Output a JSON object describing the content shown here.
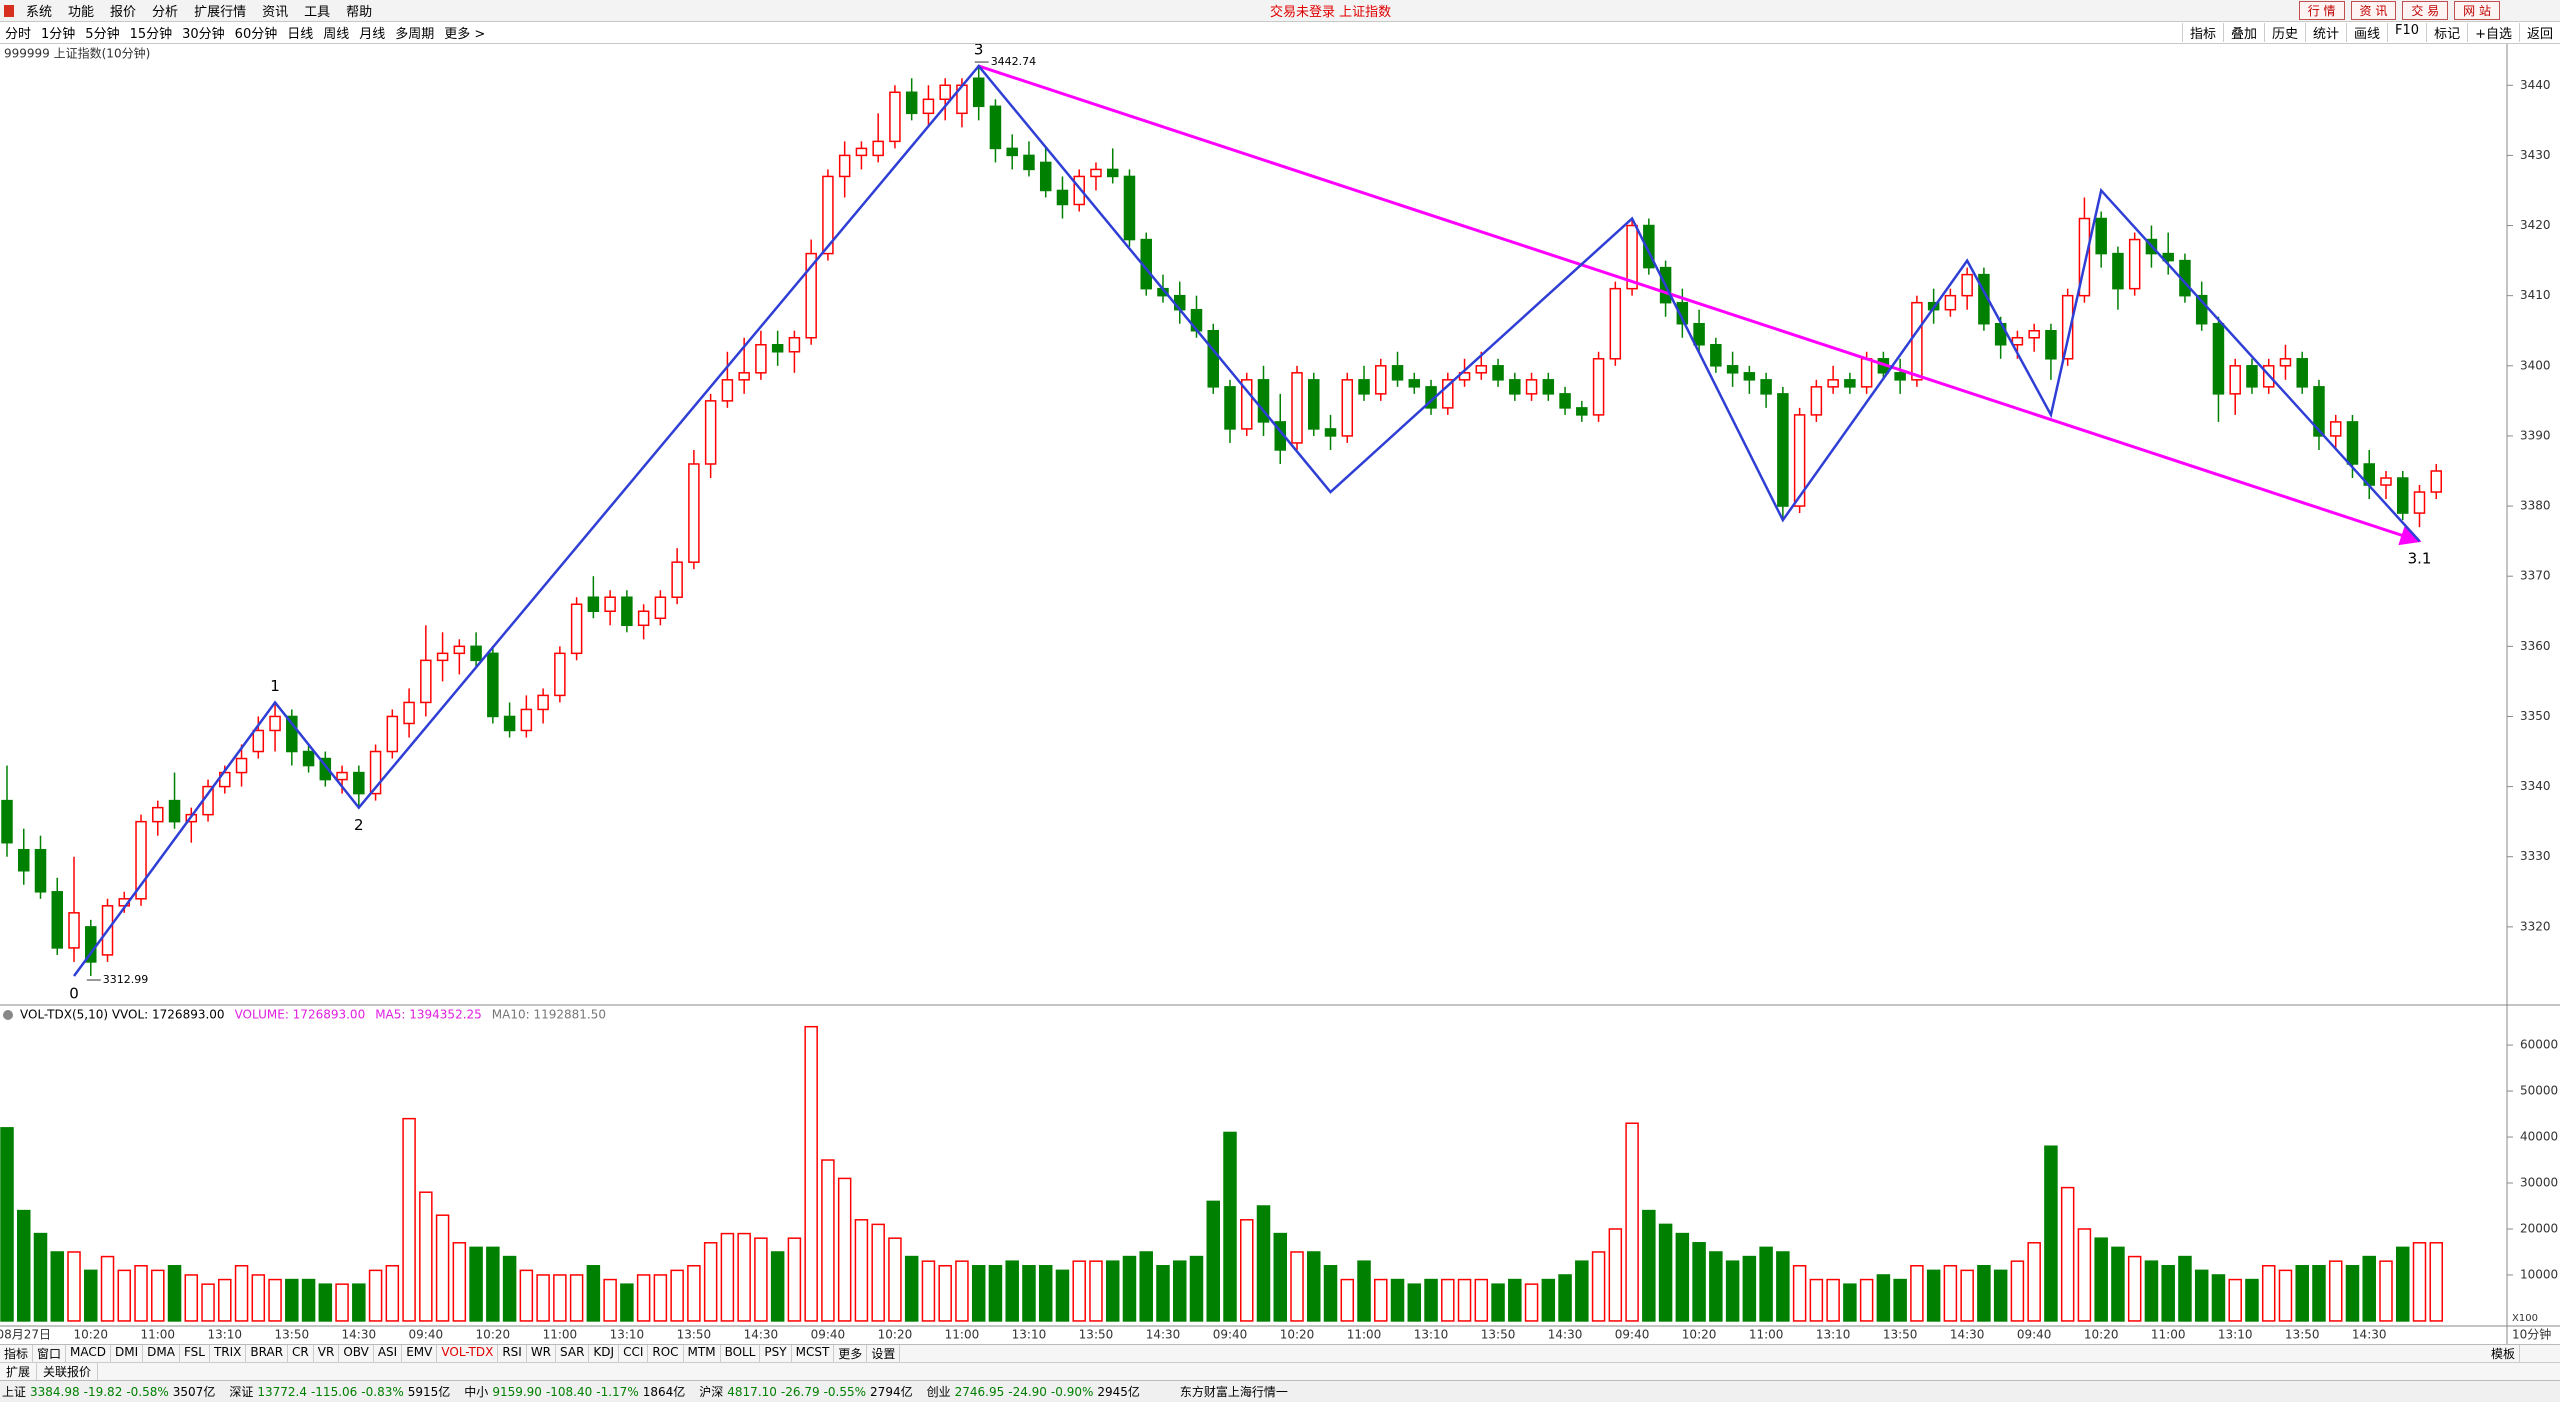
{
  "menu": {
    "items": [
      "系统",
      "功能",
      "报价",
      "分析",
      "扩展行情",
      "资讯",
      "工具",
      "帮助"
    ],
    "status": "交易未登录  上证指数",
    "buttons": [
      "行 情",
      "资 讯",
      "交 易",
      "网 站"
    ]
  },
  "toolbar": {
    "periods": [
      "分时",
      "1分钟",
      "5分钟",
      "15分钟",
      "30分钟",
      "60分钟",
      "日线",
      "周线",
      "月线",
      "多周期",
      "更多 >"
    ],
    "tools": [
      "指标",
      "叠加",
      "历史",
      "统计",
      "画线",
      "F10",
      "标记",
      "+自选",
      "返回"
    ]
  },
  "chart_data": [
    {
      "type": "candlestick",
      "title": "999999 上证指数(10分钟)",
      "period": "10分钟",
      "up_color": "#ff0000",
      "down_color": "#008000",
      "ylim": [
        3309,
        3445.6
      ],
      "yticks": [
        3320,
        3330,
        3340,
        3350,
        3360,
        3370,
        3380,
        3390,
        3400,
        3410,
        3420,
        3430,
        3440
      ],
      "time_labels": [
        "08月27日",
        "10:20",
        "11:00",
        "13:10",
        "13:50",
        "14:30",
        "09:40",
        "10:20",
        "11:00",
        "13:10",
        "13:50",
        "14:30",
        "09:40",
        "10:20",
        "11:00",
        "13:10",
        "13:50",
        "14:30",
        "09:40",
        "10:20",
        "11:00",
        "13:10",
        "13:50",
        "14:30",
        "09:40",
        "10:20",
        "11:00",
        "13:10",
        "13:50",
        "14:30",
        "09:40",
        "10:20",
        "11:00",
        "13:10",
        "13:50",
        "14:30"
      ],
      "candles": [
        [
          3338,
          3343,
          3330,
          3332
        ],
        [
          3331,
          3334,
          3326,
          3328
        ],
        [
          3331,
          3333,
          3324,
          3325
        ],
        [
          3325,
          3327,
          3316,
          3317
        ],
        [
          3317,
          3330,
          3315,
          3322
        ],
        [
          3320,
          3321,
          3312.99,
          3315
        ],
        [
          3316,
          3324,
          3315,
          3323
        ],
        [
          3323,
          3325,
          3322,
          3324
        ],
        [
          3324,
          3336,
          3323,
          3335
        ],
        [
          3335,
          3338,
          3333,
          3337
        ],
        [
          3338,
          3342,
          3334,
          3335
        ],
        [
          3335,
          3337,
          3332,
          3336
        ],
        [
          3336,
          3341,
          3335,
          3340
        ],
        [
          3340,
          3343,
          3339,
          3342
        ],
        [
          3342,
          3346,
          3340,
          3344
        ],
        [
          3345,
          3350,
          3344,
          3348
        ],
        [
          3348,
          3352,
          3345,
          3350
        ],
        [
          3350,
          3351,
          3343,
          3345
        ],
        [
          3345,
          3346,
          3342,
          3343
        ],
        [
          3344,
          3345,
          3340,
          3341
        ],
        [
          3341,
          3343,
          3339,
          3342
        ],
        [
          3342,
          3343,
          3337,
          3339
        ],
        [
          3339,
          3346,
          3338,
          3345
        ],
        [
          3345,
          3351,
          3344,
          3350
        ],
        [
          3349,
          3354,
          3347,
          3352
        ],
        [
          3352,
          3363,
          3350,
          3358
        ],
        [
          3358,
          3362,
          3355,
          3359
        ],
        [
          3359,
          3361,
          3356,
          3360
        ],
        [
          3360,
          3362,
          3357,
          3358
        ],
        [
          3359,
          3360,
          3349,
          3350
        ],
        [
          3350,
          3352,
          3347,
          3348
        ],
        [
          3348,
          3353,
          3347,
          3351
        ],
        [
          3351,
          3354,
          3349,
          3353
        ],
        [
          3353,
          3360,
          3352,
          3359
        ],
        [
          3359,
          3367,
          3358,
          3366
        ],
        [
          3367,
          3370,
          3364,
          3365
        ],
        [
          3365,
          3368,
          3363,
          3367
        ],
        [
          3367,
          3368,
          3362,
          3363
        ],
        [
          3363,
          3366,
          3361,
          3365
        ],
        [
          3364,
          3368,
          3363,
          3367
        ],
        [
          3367,
          3374,
          3366,
          3372
        ],
        [
          3372,
          3388,
          3371,
          3386
        ],
        [
          3386,
          3396,
          3384,
          3395
        ],
        [
          3395,
          3402,
          3394,
          3398
        ],
        [
          3398,
          3404,
          3396,
          3399
        ],
        [
          3399,
          3405,
          3398,
          3403
        ],
        [
          3403,
          3405,
          3400,
          3402
        ],
        [
          3402,
          3405,
          3399,
          3404
        ],
        [
          3404,
          3418,
          3403,
          3416
        ],
        [
          3416,
          3428,
          3415,
          3427
        ],
        [
          3427,
          3432,
          3424,
          3430
        ],
        [
          3430,
          3432,
          3428,
          3431
        ],
        [
          3430,
          3436,
          3429,
          3432
        ],
        [
          3432,
          3440,
          3431,
          3439
        ],
        [
          3439,
          3441,
          3435,
          3436
        ],
        [
          3436,
          3440,
          3434,
          3438
        ],
        [
          3438,
          3441,
          3435,
          3440
        ],
        [
          3436,
          3441,
          3434,
          3440
        ],
        [
          3441,
          3442.74,
          3435,
          3437
        ],
        [
          3437,
          3438,
          3429,
          3431
        ],
        [
          3431,
          3433,
          3428,
          3430
        ],
        [
          3430,
          3432,
          3427,
          3428
        ],
        [
          3429,
          3431,
          3424,
          3425
        ],
        [
          3425,
          3427,
          3421,
          3423
        ],
        [
          3423,
          3428,
          3422,
          3427
        ],
        [
          3427,
          3429,
          3425,
          3428
        ],
        [
          3428,
          3431,
          3426,
          3427
        ],
        [
          3427,
          3428,
          3417,
          3418
        ],
        [
          3418,
          3419,
          3410,
          3411
        ],
        [
          3411,
          3413,
          3409,
          3410
        ],
        [
          3410,
          3412,
          3406,
          3408
        ],
        [
          3408,
          3410,
          3404,
          3405
        ],
        [
          3405,
          3406,
          3396,
          3397
        ],
        [
          3397,
          3398,
          3389,
          3391
        ],
        [
          3391,
          3399,
          3390,
          3398
        ],
        [
          3398,
          3400,
          3390,
          3392
        ],
        [
          3392,
          3396,
          3386,
          3388
        ],
        [
          3389,
          3400,
          3388,
          3399
        ],
        [
          3398,
          3399,
          3390,
          3391
        ],
        [
          3391,
          3393,
          3388,
          3390
        ],
        [
          3390,
          3399,
          3389,
          3398
        ],
        [
          3398,
          3400,
          3395,
          3396
        ],
        [
          3396,
          3401,
          3395,
          3400
        ],
        [
          3400,
          3402,
          3397,
          3398
        ],
        [
          3398,
          3399,
          3396,
          3397
        ],
        [
          3397,
          3398,
          3393,
          3394
        ],
        [
          3394,
          3399,
          3393,
          3398
        ],
        [
          3398,
          3401,
          3397,
          3399
        ],
        [
          3399,
          3402,
          3398,
          3400
        ],
        [
          3400,
          3401,
          3397,
          3398
        ],
        [
          3398,
          3399,
          3395,
          3396
        ],
        [
          3396,
          3399,
          3395,
          3398
        ],
        [
          3398,
          3399,
          3395,
          3396
        ],
        [
          3396,
          3397,
          3393,
          3394
        ],
        [
          3394,
          3395,
          3392,
          3393
        ],
        [
          3393,
          3402,
          3392,
          3401
        ],
        [
          3401,
          3412,
          3400,
          3411
        ],
        [
          3411,
          3421,
          3410,
          3420
        ],
        [
          3420,
          3421,
          3413,
          3414
        ],
        [
          3414,
          3415,
          3407,
          3409
        ],
        [
          3409,
          3411,
          3404,
          3406
        ],
        [
          3406,
          3408,
          3402,
          3403
        ],
        [
          3403,
          3404,
          3399,
          3400
        ],
        [
          3400,
          3402,
          3397,
          3399
        ],
        [
          3399,
          3400,
          3396,
          3398
        ],
        [
          3398,
          3399,
          3394,
          3396
        ],
        [
          3396,
          3397,
          3378,
          3380
        ],
        [
          3380,
          3394,
          3379,
          3393
        ],
        [
          3393,
          3398,
          3392,
          3397
        ],
        [
          3397,
          3400,
          3396,
          3398
        ],
        [
          3398,
          3399,
          3396,
          3397
        ],
        [
          3397,
          3402,
          3396,
          3401
        ],
        [
          3401,
          3402,
          3398,
          3399
        ],
        [
          3399,
          3401,
          3396,
          3398
        ],
        [
          3398,
          3410,
          3397,
          3409
        ],
        [
          3409,
          3411,
          3406,
          3408
        ],
        [
          3408,
          3411,
          3407,
          3410
        ],
        [
          3410,
          3414,
          3408,
          3413
        ],
        [
          3413,
          3414,
          3405,
          3406
        ],
        [
          3406,
          3407,
          3401,
          3403
        ],
        [
          3403,
          3405,
          3401,
          3404
        ],
        [
          3404,
          3406,
          3402,
          3405
        ],
        [
          3405,
          3406,
          3398,
          3401
        ],
        [
          3401,
          3411,
          3400,
          3410
        ],
        [
          3410,
          3424,
          3409,
          3421
        ],
        [
          3421,
          3422,
          3414,
          3416
        ],
        [
          3416,
          3417,
          3408,
          3411
        ],
        [
          3411,
          3419,
          3410,
          3418
        ],
        [
          3418,
          3420,
          3414,
          3416
        ],
        [
          3416,
          3419,
          3413,
          3415
        ],
        [
          3415,
          3416,
          3409,
          3410
        ],
        [
          3410,
          3412,
          3405,
          3406
        ],
        [
          3406,
          3407,
          3392,
          3396
        ],
        [
          3396,
          3401,
          3393,
          3400
        ],
        [
          3400,
          3401,
          3396,
          3397
        ],
        [
          3397,
          3401,
          3396,
          3400
        ],
        [
          3400,
          3403,
          3398,
          3401
        ],
        [
          3401,
          3402,
          3396,
          3397
        ],
        [
          3397,
          3398,
          3388,
          3390
        ],
        [
          3390,
          3393,
          3388,
          3392
        ],
        [
          3392,
          3393,
          3384,
          3386
        ],
        [
          3386,
          3388,
          3381,
          3383
        ],
        [
          3383,
          3385,
          3381,
          3384
        ],
        [
          3384,
          3385,
          3378,
          3379
        ],
        [
          3379,
          3383,
          3377,
          3382
        ],
        [
          3382,
          3386,
          3381,
          3385
        ]
      ],
      "high": {
        "bar": 58,
        "value": 3442.74
      },
      "low": {
        "bar": 5,
        "value": 3312.99
      },
      "wave": {
        "color": "#2f3fd6",
        "points": [
          {
            "bar": 4,
            "price": 3312.99,
            "label": "0"
          },
          {
            "bar": 16,
            "price": 3352,
            "label": "1"
          },
          {
            "bar": 21,
            "price": 3337,
            "label": "2"
          },
          {
            "bar": 58,
            "price": 3442.74,
            "label": "3"
          },
          {
            "bar": 79,
            "price": 3382
          },
          {
            "bar": 97,
            "price": 3421
          },
          {
            "bar": 106,
            "price": 3378
          },
          {
            "bar": 117,
            "price": 3415
          },
          {
            "bar": 122,
            "price": 3393
          },
          {
            "bar": 125,
            "price": 3425
          },
          {
            "bar": 144,
            "price": 3375,
            "label": "3.1"
          }
        ]
      },
      "trend": {
        "color": "#ff00ff",
        "points": [
          {
            "bar": 58,
            "price": 3442.74
          },
          {
            "bar": 144,
            "price": 3375
          }
        ]
      }
    },
    {
      "type": "bar",
      "title": "VOL-TDX(5,10) VVOL: 1726893.00",
      "legend": [
        {
          "text": "VOLUME: 1726893.00",
          "color": "#e020e0"
        },
        {
          "text": "MA5: 1394352.25",
          "color": "#e020e0"
        },
        {
          "text": "MA10: 1192881.50",
          "color": "#777777"
        }
      ],
      "unit": "X100",
      "ylim": [
        -1100,
        68500
      ],
      "yticks": [
        10000,
        20000,
        30000,
        40000,
        50000,
        60000
      ],
      "values": [
        42000,
        24000,
        19000,
        15000,
        15000,
        11000,
        14000,
        11000,
        12000,
        11000,
        12000,
        10000,
        8000,
        9000,
        12000,
        10000,
        9000,
        9000,
        9000,
        8000,
        8000,
        8000,
        11000,
        12000,
        44000,
        28000,
        23000,
        17000,
        16000,
        16000,
        14000,
        11000,
        10000,
        10000,
        10000,
        12000,
        9000,
        8000,
        10000,
        10000,
        11000,
        12000,
        17000,
        19000,
        19000,
        18000,
        15000,
        18000,
        64000,
        35000,
        31000,
        22000,
        21000,
        18000,
        14000,
        13000,
        12000,
        13000,
        12000,
        12000,
        13000,
        12000,
        12000,
        11000,
        13000,
        13000,
        13000,
        14000,
        15000,
        12000,
        13000,
        14000,
        26000,
        41000,
        22000,
        25000,
        19000,
        15000,
        15000,
        12000,
        9000,
        13000,
        9000,
        9000,
        8000,
        9000,
        9000,
        9000,
        9000,
        8000,
        9000,
        8000,
        9000,
        10000,
        13000,
        15000,
        20000,
        43000,
        24000,
        21000,
        19000,
        17000,
        15000,
        13000,
        14000,
        16000,
        15000,
        12000,
        9000,
        9000,
        8000,
        9000,
        10000,
        9000,
        12000,
        11000,
        12000,
        11000,
        12000,
        11000,
        13000,
        17000,
        38000,
        29000,
        20000,
        18000,
        16000,
        14000,
        13000,
        12000,
        14000,
        11000,
        10000,
        9000,
        9000,
        12000,
        11000,
        12000,
        12000,
        13000,
        12000,
        14000,
        13000,
        16000,
        17000,
        17000
      ]
    }
  ],
  "indicators": {
    "tabs": [
      "指标",
      "窗口",
      "MACD",
      "DMI",
      "DMA",
      "FSL",
      "TRIX",
      "BRAR",
      "CR",
      "VR",
      "OBV",
      "ASI",
      "EMV",
      "VOL-TDX",
      "RSI",
      "WR",
      "SAR",
      "KDJ",
      "CCI",
      "ROC",
      "MTM",
      "BOLL",
      "PSY",
      "MCST",
      "更多",
      "设置"
    ],
    "active": "VOL-TDX",
    "template": "模板"
  },
  "extension": {
    "tabs": [
      "扩展",
      "关联报价"
    ]
  },
  "status": {
    "color": "#008000",
    "items": [
      {
        "name": "上证",
        "price": "3384.98",
        "change": "-19.82",
        "pct": "-0.58%",
        "amount": "3507亿"
      },
      {
        "name": "深证",
        "price": "13772.4",
        "change": "-115.06",
        "pct": "-0.83%",
        "amount": "5915亿"
      },
      {
        "name": "中小",
        "price": "9159.90",
        "change": "-108.40",
        "pct": "-1.17%",
        "amount": "1864亿"
      },
      {
        "name": "沪深",
        "price": "4817.10",
        "change": "-26.79",
        "pct": "-0.55%",
        "amount": "2794亿"
      },
      {
        "name": "创业",
        "price": "2746.95",
        "change": "-24.90",
        "pct": "-0.90%",
        "amount": "2945亿"
      }
    ],
    "feed": "东方财富上海行情一"
  }
}
